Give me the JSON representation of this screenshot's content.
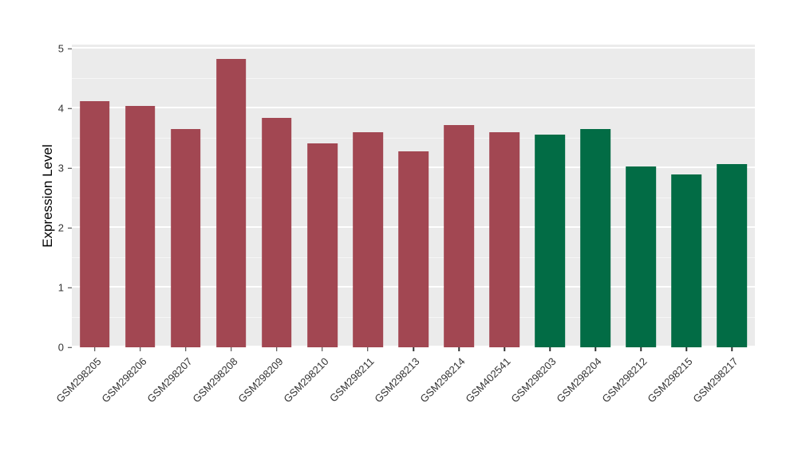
{
  "figure": {
    "background": "#FFFFFF",
    "panel_background": "#EBEBEB",
    "gridline_color": "#FFFFFF",
    "axis_text_color": "#333333",
    "axis_title_color": "#000000"
  },
  "chart_data": {
    "type": "bar",
    "title": "",
    "xlabel": "",
    "ylabel": "Expression Level",
    "ylim": [
      0,
      5
    ],
    "yticks": [
      0,
      1,
      2,
      3,
      4,
      5
    ],
    "grid": "major and minor horizontal white gridlines on gray panel",
    "legend": "none",
    "x_label_angle": 45,
    "categories": [
      "GSM298205",
      "GSM298206",
      "GSM298207",
      "GSM298208",
      "GSM298209",
      "GSM298210",
      "GSM298211",
      "GSM298213",
      "GSM298214",
      "GSM402541",
      "GSM298203",
      "GSM298204",
      "GSM298212",
      "GSM298215",
      "GSM298217"
    ],
    "values": [
      4.13,
      4.04,
      3.66,
      4.83,
      3.85,
      3.42,
      3.6,
      3.29,
      3.72,
      3.61,
      3.57,
      3.66,
      3.03,
      2.9,
      3.07
    ],
    "bar_groups": [
      0,
      0,
      0,
      0,
      0,
      0,
      0,
      0,
      0,
      0,
      1,
      1,
      1,
      1,
      1
    ],
    "group_colors": [
      "#A24752",
      "#026C45"
    ]
  }
}
